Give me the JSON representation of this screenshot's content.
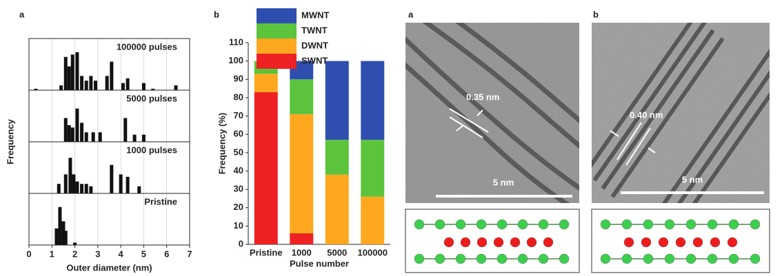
{
  "chart_data": [
    {
      "type": "histogram-panels",
      "panel_label": "a",
      "xlabel": "Outer diameter (nm)",
      "ylabel": "Frequency",
      "xlim": [
        0,
        7
      ],
      "xticks": [
        0,
        1,
        2,
        3,
        4,
        5,
        6,
        7
      ],
      "ylim": [
        0,
        10
      ],
      "grid": true,
      "color": "#111111",
      "panels": [
        {
          "name": "100000 pulses",
          "x": [
            0.3,
            1.4,
            1.6,
            1.75,
            1.9,
            2.1,
            2.3,
            2.5,
            2.7,
            2.9,
            3.4,
            3.6,
            4.1,
            4.3,
            5.0,
            5.4,
            6.4
          ],
          "values": [
            0.3,
            1,
            7,
            5,
            7.5,
            8,
            3,
            2,
            3,
            2,
            3,
            6,
            1.5,
            2.5,
            1.5,
            0.3,
            1
          ]
        },
        {
          "name": "5000 pulses",
          "x": [
            1.6,
            1.75,
            1.9,
            2.1,
            2.3,
            2.5,
            2.8,
            3.1,
            4.2,
            4.6,
            5.0
          ],
          "values": [
            5,
            3.5,
            3,
            7,
            4,
            2,
            2,
            2,
            5,
            1.5,
            1.5
          ]
        },
        {
          "name": "1000 pulses",
          "x": [
            1.3,
            1.6,
            1.8,
            1.95,
            2.1,
            2.3,
            2.5,
            2.7,
            3.6,
            4.0,
            4.3,
            4.8
          ],
          "values": [
            2,
            4,
            7.5,
            4,
            2.5,
            2,
            2,
            1.5,
            6,
            4,
            3.5,
            1.5
          ]
        },
        {
          "name": "Pristine",
          "x": [
            1.2,
            1.35,
            1.5,
            1.6,
            2.0
          ],
          "values": [
            3.5,
            8,
            5,
            3,
            0.5
          ]
        }
      ]
    },
    {
      "type": "stacked-bar",
      "panel_label": "b",
      "xlabel": "Pulse number",
      "ylabel": "Frequency (%)",
      "categories": [
        "Pristine",
        "1000",
        "5000",
        "100000"
      ],
      "ylim": [
        0,
        110
      ],
      "yticks": [
        0,
        10,
        20,
        30,
        40,
        50,
        60,
        70,
        80,
        90,
        100,
        110
      ],
      "series": [
        {
          "name": "SWNT",
          "color": "#ee2222",
          "values": [
            83,
            6,
            0,
            0
          ]
        },
        {
          "name": "DWNT",
          "color": "#ffa81f",
          "values": [
            10,
            65,
            38,
            26
          ]
        },
        {
          "name": "TWNT",
          "color": "#5cc43c",
          "values": [
            7,
            19,
            19,
            31
          ]
        },
        {
          "name": "MWNT",
          "color": "#2f4fb0",
          "values": [
            0,
            10,
            43,
            43
          ]
        }
      ]
    }
  ],
  "tem_images": [
    {
      "panel_label": "a",
      "measurement": "0.35 nm",
      "scale_bar": "5 nm"
    },
    {
      "panel_label": "b",
      "measurement": "0.40 nm",
      "scale_bar": "5 nm"
    }
  ]
}
